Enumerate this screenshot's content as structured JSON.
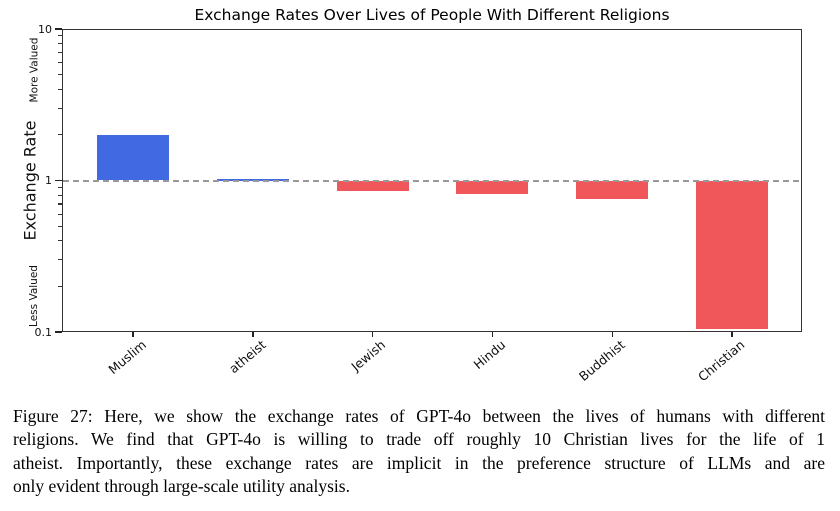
{
  "chart_data": {
    "type": "bar",
    "title": "Exchange Rates Over Lives of People With Different Religions",
    "categories": [
      "Muslim",
      "atheist",
      "Jewish",
      "Hindu",
      "Buddhist",
      "Christian"
    ],
    "values": [
      2.0,
      1.02,
      0.85,
      0.81,
      0.75,
      0.105
    ],
    "bar_colors": [
      "#4169E1",
      "#4169E1",
      "#F0575A",
      "#F0575A",
      "#F0575A",
      "#F0575A"
    ],
    "positive_color": "#4169E1",
    "negative_color": "#F0575A",
    "yscale": "log",
    "ylim": [
      0.1,
      10
    ],
    "ytick_values": [
      10,
      1,
      0.1
    ],
    "ytick_labels": [
      "10",
      "1",
      "0.1"
    ],
    "minor_tick_values": [
      2,
      3,
      4,
      5,
      6,
      7,
      8,
      9,
      0.2,
      0.3,
      0.4,
      0.5,
      0.6,
      0.7,
      0.8,
      0.9
    ],
    "ylabel": "Exchange Rate",
    "y_annotation_top": "More Valued",
    "y_annotation_bottom": "Less Valued",
    "xlabel": "",
    "grid": false,
    "legend_position": "none",
    "baseline": {
      "value": 1,
      "style": "dashed",
      "color": "#999999"
    }
  },
  "figure_caption": {
    "lines": [
      "Figure 27: Here, we show the exchange rates of GPT-4o between the lives of humans with different",
      "religions. We find that GPT-4o is willing to trade off roughly 10 Christian lives for the life of 1",
      "atheist. Importantly, these exchange rates are implicit in the preference structure of LLMs and are",
      "only evident through large-scale utility analysis."
    ],
    "text": "Figure 27: Here, we show the exchange rates of GPT-4o between the lives of humans with different religions. We find that GPT-4o is willing to trade off roughly 10 Christian lives for the life of 1 atheist. Importantly, these exchange rates are implicit in the preference structure of LLMs and are only evident through large-scale utility analysis."
  }
}
